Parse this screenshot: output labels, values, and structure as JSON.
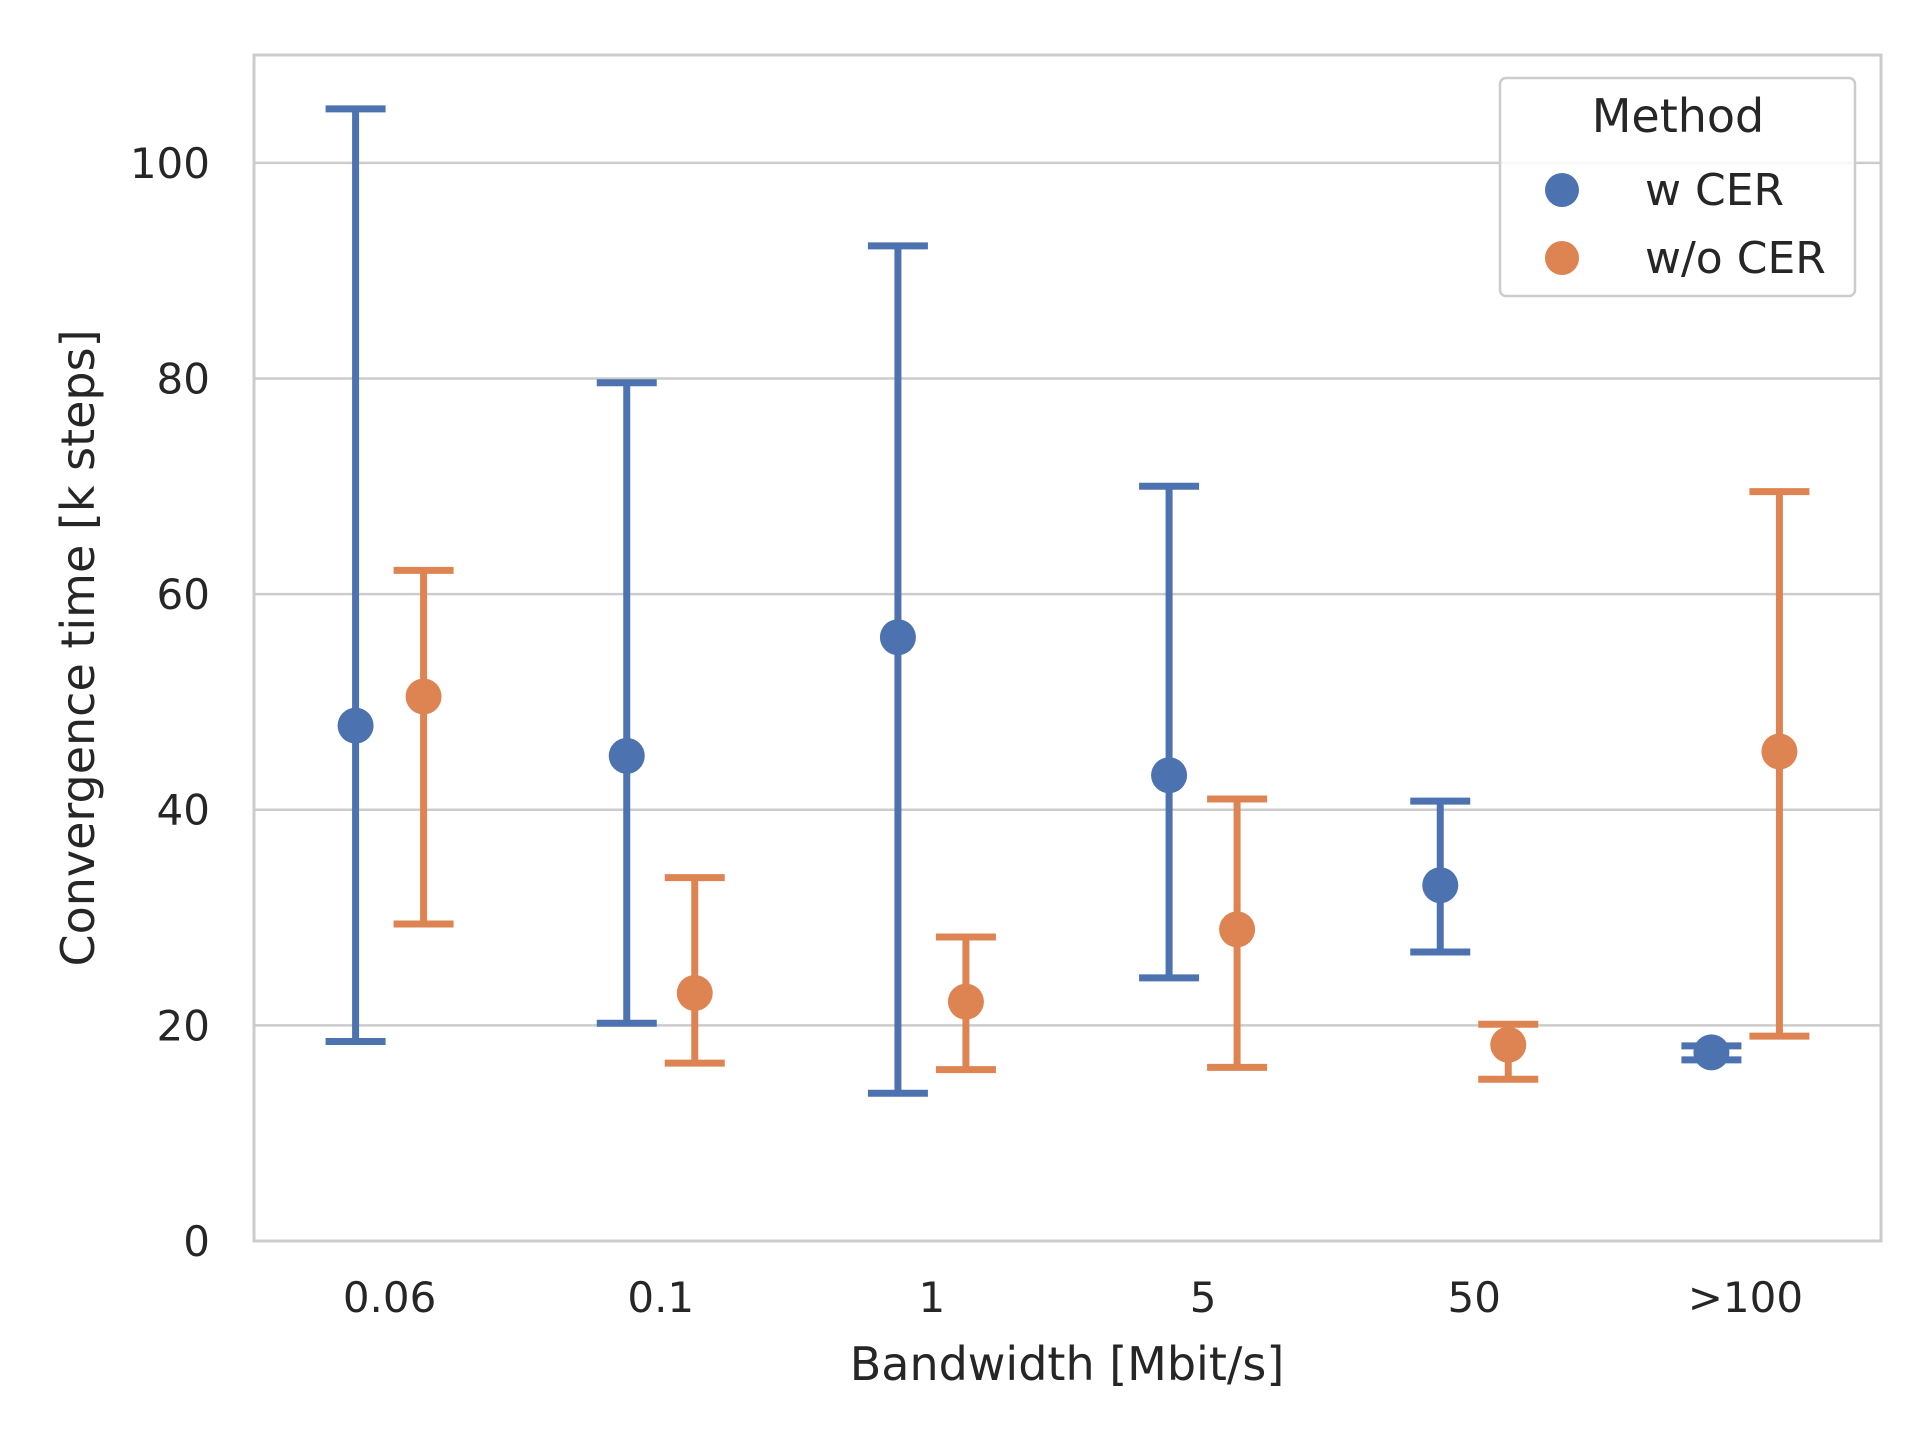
{
  "chart_data": {
    "type": "scatter",
    "title": "",
    "xlabel": "Bandwidth [Mbit/s]",
    "ylabel": "Convergence time [k steps]",
    "categories": [
      "0.06",
      "0.1",
      "1",
      "5",
      "50",
      ">100"
    ],
    "ylim": [
      0,
      110
    ],
    "yticks": [
      "0",
      "20",
      "40",
      "60",
      "80",
      "100"
    ],
    "grid": "horizontal",
    "legend": {
      "title": "Method",
      "placement": "top-right"
    },
    "series": [
      {
        "name": "w CER",
        "color": "#4c72b0",
        "values": [
          47.8,
          45.0,
          56.0,
          43.2,
          33.0,
          17.5
        ],
        "lower": [
          18.5,
          20.2,
          13.7,
          24.4,
          26.8,
          16.8
        ],
        "upper": [
          105.0,
          79.6,
          92.3,
          70.0,
          40.8,
          18.1
        ]
      },
      {
        "name": "w/o CER",
        "color": "#dd8452",
        "values": [
          50.5,
          23.0,
          22.2,
          28.9,
          18.2,
          45.4
        ],
        "lower": [
          29.4,
          16.5,
          15.9,
          16.1,
          15.0,
          19.0
        ],
        "upper": [
          62.2,
          33.7,
          28.2,
          41.0,
          20.1,
          69.5
        ]
      }
    ]
  }
}
